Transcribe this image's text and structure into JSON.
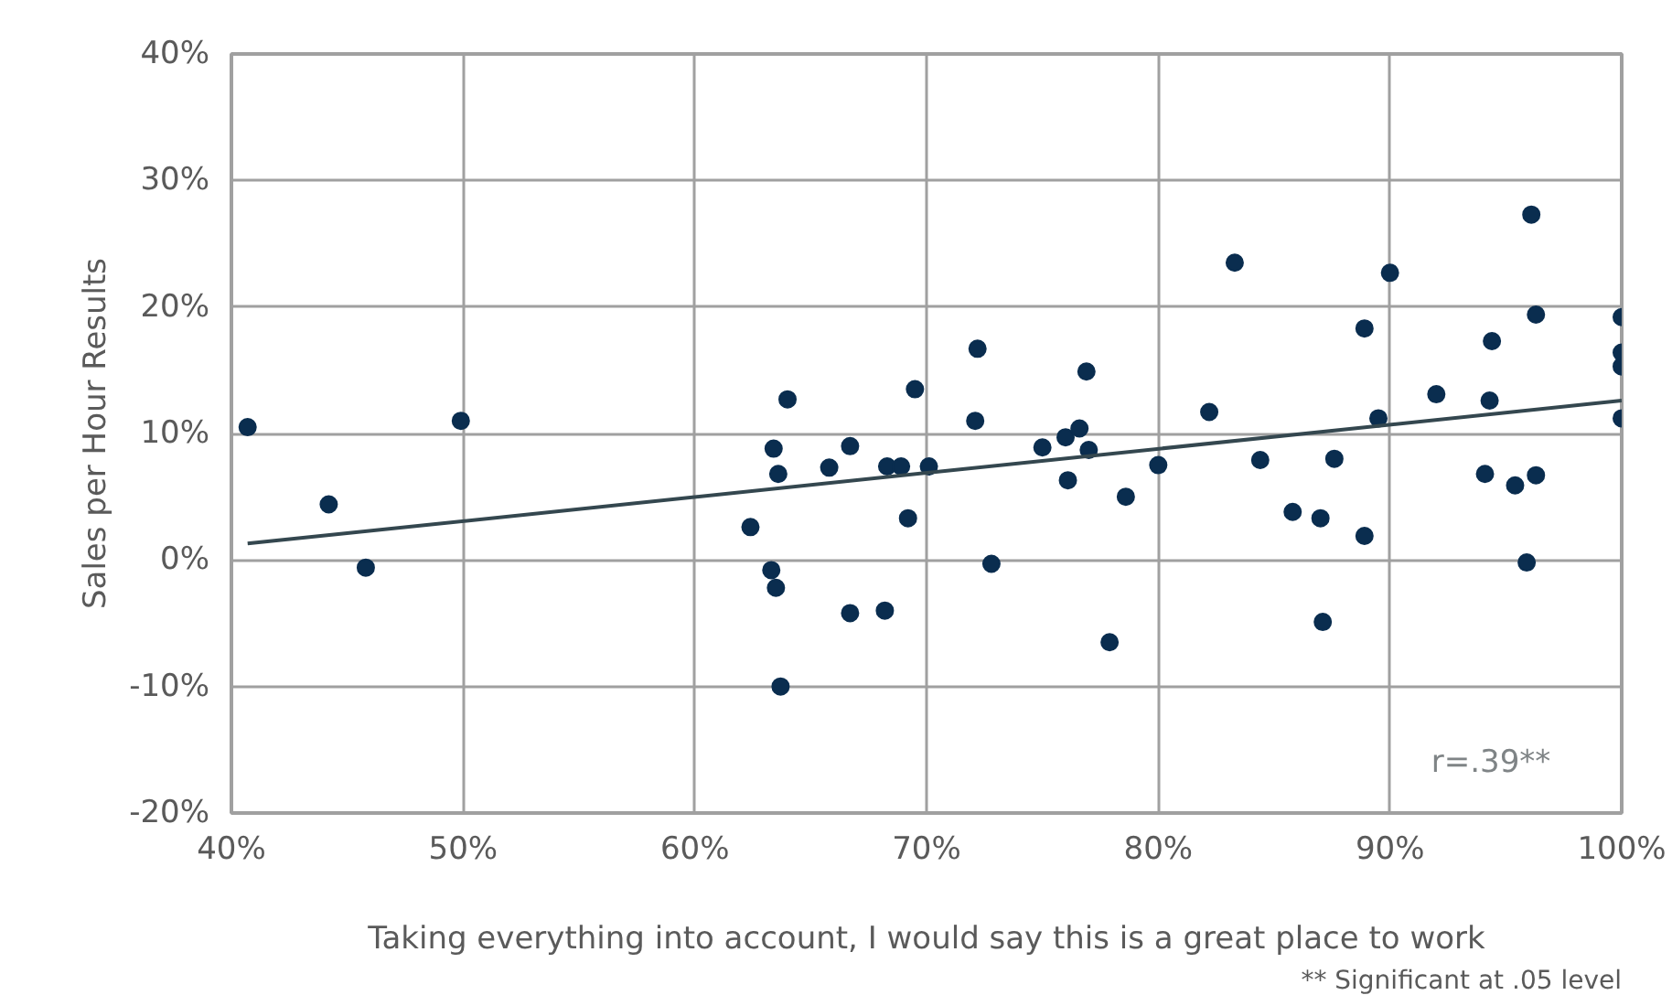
{
  "chart_data": {
    "type": "scatter",
    "xlabel": "Taking everything into account, I would say this is a great place to work",
    "ylabel": "Sales per Hour Results",
    "annotations": [
      "r=.39**",
      "** Significant at .05 level"
    ],
    "xlim": [
      40,
      100
    ],
    "ylim": [
      -20,
      40
    ],
    "xticks": [
      {
        "value": 40,
        "label": "40%"
      },
      {
        "value": 50,
        "label": "50%"
      },
      {
        "value": 60,
        "label": "60%"
      },
      {
        "value": 70,
        "label": "70%"
      },
      {
        "value": 80,
        "label": "80%"
      },
      {
        "value": 90,
        "label": "90%"
      },
      {
        "value": 100,
        "label": "100%"
      }
    ],
    "yticks": [
      {
        "value": -20,
        "label": "-20%"
      },
      {
        "value": -10,
        "label": "-10%"
      },
      {
        "value": 0,
        "label": "0%"
      },
      {
        "value": 10,
        "label": "10%"
      },
      {
        "value": 20,
        "label": "20%"
      },
      {
        "value": 30,
        "label": "30%"
      },
      {
        "value": 40,
        "label": "40%"
      }
    ],
    "grid": true,
    "series": [
      {
        "color": "#0a2d4f",
        "marker": "circle",
        "x": [
          40.7,
          44.2,
          45.8,
          49.9,
          62.4,
          63.3,
          63.5,
          63.4,
          63.6,
          64.0,
          63.7,
          65.8,
          66.7,
          66.7,
          68.3,
          68.2,
          68.9,
          69.2,
          69.5,
          70.1,
          72.2,
          72.1,
          72.8,
          75.0,
          76.1,
          76.0,
          76.6,
          76.9,
          77.0,
          77.9,
          78.6,
          80.0,
          82.2,
          83.3,
          84.4,
          85.8,
          87.0,
          87.1,
          87.6,
          88.9,
          88.9,
          89.5,
          90.0,
          92.0,
          94.1,
          94.3,
          94.4,
          95.4,
          95.9,
          96.1,
          96.3,
          96.3,
          100,
          100,
          100,
          100
        ],
        "values": [
          10.5,
          4.4,
          -0.6,
          11.0,
          2.6,
          -0.8,
          -2.2,
          8.8,
          6.8,
          12.7,
          -10.0,
          7.3,
          9.0,
          -4.2,
          7.4,
          -4.0,
          7.4,
          3.3,
          13.5,
          7.4,
          16.7,
          11.0,
          -0.3,
          8.9,
          6.3,
          9.7,
          10.4,
          14.9,
          8.7,
          -6.5,
          5.0,
          7.5,
          11.7,
          23.5,
          7.9,
          3.8,
          3.3,
          -4.9,
          8.0,
          18.3,
          1.9,
          11.2,
          22.7,
          13.1,
          6.8,
          12.6,
          17.3,
          5.9,
          -0.2,
          27.3,
          6.7,
          19.4,
          19.2,
          16.4,
          15.3,
          11.2
        ]
      },
      {
        "type": "line",
        "color": "#34474f",
        "x": [
          40.7,
          100
        ],
        "values": [
          1.3,
          12.6
        ]
      }
    ]
  }
}
